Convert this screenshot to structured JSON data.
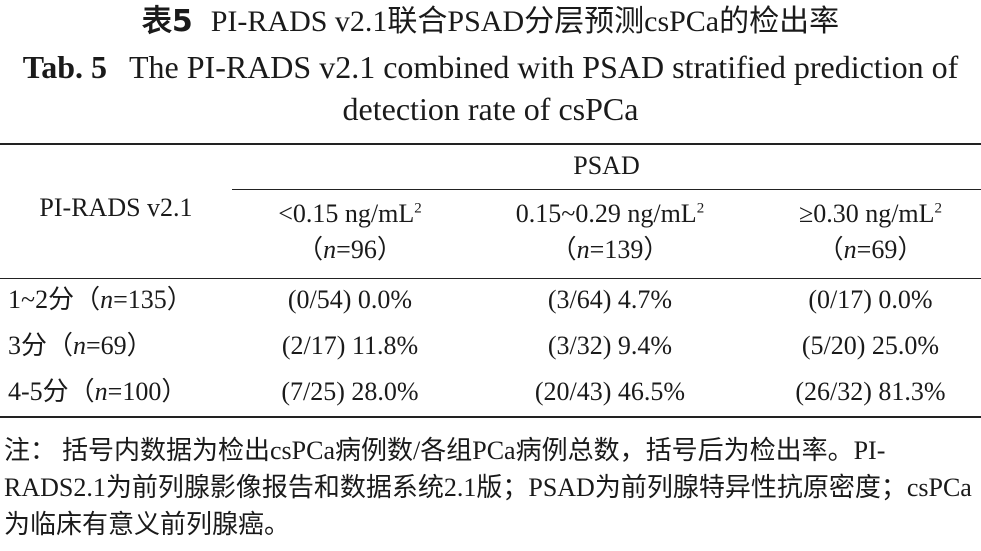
{
  "title": {
    "cn_label": "表5",
    "cn_text": "PI-RADS v2.1联合PSAD分层预测csPCa的检出率",
    "en_label": "Tab. 5",
    "en_text": "The PI-RADS v2.1 combined with PSAD stratified prediction of detection rate of csPCa"
  },
  "table": {
    "row_header": "PI-RADS v2.1",
    "group_header": "PSAD",
    "columns": [
      {
        "range_text": "<0.15 ng/mL",
        "sup": "2",
        "n_open": "（",
        "n_var": "n",
        "n_rest": "=96）"
      },
      {
        "range_text": "0.15~0.29 ng/mL",
        "sup": "2",
        "n_open": "（",
        "n_var": "n",
        "n_rest": "=139）"
      },
      {
        "range_text": "≥0.30 ng/mL",
        "sup": "2",
        "n_open": "（",
        "n_var": "n",
        "n_rest": "=69）"
      }
    ],
    "rows": [
      {
        "label_pre": "1~2分（",
        "label_var": "n",
        "label_post": "=135）",
        "cells": [
          "(0/54) 0.0%",
          "(3/64) 4.7%",
          "(0/17) 0.0%"
        ]
      },
      {
        "label_pre": "3分（",
        "label_var": "n",
        "label_post": "=69）",
        "cells": [
          "(2/17) 11.8%",
          "(3/32) 9.4%",
          "(5/20) 25.0%"
        ]
      },
      {
        "label_pre": "4-5分（",
        "label_var": "n",
        "label_post": "=100）",
        "cells": [
          "(7/25) 28.0%",
          "(20/43) 46.5%",
          "(26/32) 81.3%"
        ]
      }
    ]
  },
  "note": {
    "label": "注：",
    "text": "括号内数据为检出csPCa病例数/各组PCa病例总数，括号后为检出率。PI-RADS2.1为前列腺影像报告和数据系统2.1版；PSAD为前列腺特异性抗原密度；csPCa为临床有意义前列腺癌。"
  }
}
